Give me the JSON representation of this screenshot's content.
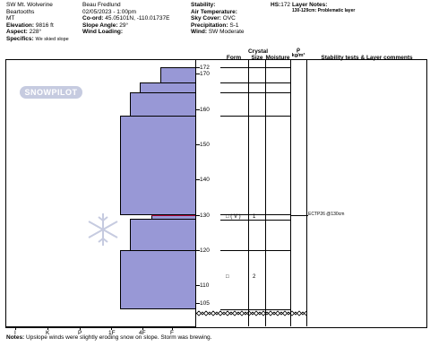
{
  "header": {
    "location": "SW Mt. Wolverine",
    "range": "Beartooths",
    "state": "MT",
    "elevation_label": "Elevation:",
    "elevation_value": "9816 ft",
    "aspect_label": "Aspect:",
    "aspect_value": "228°",
    "specifics_label": "Specifics:",
    "specifics_value": "We skied slope",
    "observer": "Beau  Fredlund",
    "datetime": "02/05/2023 - 1:00pm",
    "coord_label": "Co-ord:",
    "coord_value": "45.05101N, -110.01737E",
    "slope_label": "Slope Angle:",
    "slope_value": "29°",
    "wind_loading_label": "Wind Loading:",
    "wind_loading_value": "",
    "stability_label": "Stability:",
    "stability_value": "",
    "air_temp_label": "Air Temperature:",
    "air_temp_value": "",
    "sky_label": "Sky Cover:",
    "sky_value": "OVC",
    "precip_label": "Precipitation:",
    "precip_value": "S-1",
    "wind_label": "Wind:",
    "wind_value": "SW Moderate",
    "hs_label": "HS:",
    "hs_value": "172",
    "layer_notes_label": "Layer Notes:",
    "layer_note": "130-129cm: Problematic layer"
  },
  "watermark": "SNOWPILOT",
  "columns": {
    "crystal": "Crystal",
    "form": "Form",
    "size": "Size",
    "moisture": "Moisture",
    "rho": "ρ",
    "rho_units": "kg/m³",
    "stability": "Stability tests & Layer comments"
  },
  "depth_ticks": [
    "172",
    "170",
    "160",
    "150",
    "140",
    "130",
    "120",
    "110",
    "105"
  ],
  "hardness_labels": [
    "I",
    "K",
    "P",
    "1F",
    "4F",
    "F"
  ],
  "layers_obs": [
    {
      "form": "□ ( V )",
      "size": "1"
    },
    {
      "form": "□",
      "size": "2"
    }
  ],
  "stability_test": "ECTP26 @130cm",
  "notes_label": "Notes:",
  "notes_value": "Upslope winds were slightly eroding snow on slope.  Storm was brewing.",
  "colors": {
    "layer_fill": "#9898d6",
    "weak_layer": "#b0003a"
  }
}
